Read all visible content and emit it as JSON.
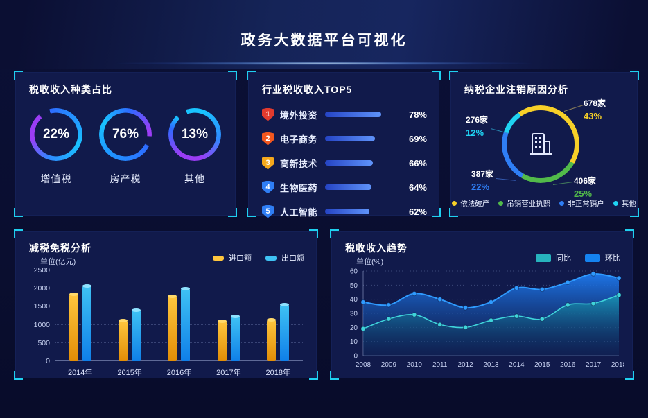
{
  "header": {
    "title": "政务大数据平台可视化"
  },
  "panels": {
    "tax_type": {
      "title": "税收收入种类占比"
    },
    "industry_top5": {
      "title": "行业税收收入TOP5"
    },
    "deregistration": {
      "title": "纳税企业注销原因分析"
    },
    "tax_reduction": {
      "title": "减税免税分析",
      "unit": "单位(亿元)"
    },
    "revenue_trend": {
      "title": "税收收入趋势",
      "unit": "单位(%)"
    }
  },
  "chart_data": [
    {
      "type": "donut",
      "title": "税收收入种类占比",
      "items": [
        {
          "label": "增值税",
          "value": 22,
          "percent_label": "22%"
        },
        {
          "label": "房产税",
          "value": 76,
          "percent_label": "76%"
        },
        {
          "label": "其他",
          "value": 13,
          "percent_label": "13%"
        }
      ]
    },
    {
      "type": "bar-horizontal",
      "title": "行业税收收入TOP5",
      "max": 100,
      "items": [
        {
          "rank": "1",
          "label": "境外投资",
          "value": 78,
          "value_label": "78%",
          "badge_color": "#e23a2e"
        },
        {
          "rank": "2",
          "label": "电子商务",
          "value": 69,
          "value_label": "69%",
          "badge_color": "#f2571f"
        },
        {
          "rank": "3",
          "label": "高新技术",
          "value": 66,
          "value_label": "66%",
          "badge_color": "#f5a81c"
        },
        {
          "rank": "4",
          "label": "生物医药",
          "value": 64,
          "value_label": "64%",
          "badge_color": "#2f7ef5"
        },
        {
          "rank": "5",
          "label": "人工智能",
          "value": 62,
          "value_label": "62%",
          "badge_color": "#2f7ef5"
        }
      ]
    },
    {
      "type": "donut",
      "title": "纳税企业注销原因分析",
      "start_angle": 325,
      "segments": [
        {
          "label": "依法破产",
          "count": "678家",
          "value": 43,
          "percent_label": "43%",
          "color": "#f7d028"
        },
        {
          "label": "吊销营业执照",
          "count": "406家",
          "value": 25,
          "percent_label": "25%",
          "color": "#52ba4a"
        },
        {
          "label": "非正常销户",
          "count": "387家",
          "value": 22,
          "percent_label": "22%",
          "color": "#2f7ef5"
        },
        {
          "label": "其他",
          "count": "276家",
          "value": 12,
          "percent_label": "12%",
          "color": "#1fd3f2"
        }
      ]
    },
    {
      "type": "bar",
      "title": "减税免税分析",
      "unit": "单位(亿元)",
      "categories": [
        "2014年",
        "2015年",
        "2016年",
        "2017年",
        "2018年"
      ],
      "ylim": [
        0,
        2500
      ],
      "yticks": [
        0,
        500,
        1000,
        1500,
        2000,
        2500
      ],
      "series": [
        {
          "name": "进口额",
          "color_top": "#ffc63e",
          "color_bottom": "#e28d06",
          "cap": "#ffd96a",
          "values": [
            1850,
            1130,
            1800,
            1100,
            1150
          ]
        },
        {
          "name": "出口额",
          "color_top": "#3fc2f4",
          "color_bottom": "#0f7fe8",
          "cap": "#8fe2ff",
          "values": [
            2080,
            1420,
            2000,
            1250,
            1560
          ]
        }
      ]
    },
    {
      "type": "area",
      "title": "税收收入趋势",
      "unit": "单位(%)",
      "x": [
        "2008",
        "2009",
        "2010",
        "2011",
        "2012",
        "2013",
        "2014",
        "2015",
        "2016",
        "2017",
        "2018"
      ],
      "ylim": [
        0,
        60
      ],
      "yticks": [
        0,
        10,
        20,
        30,
        40,
        50,
        60
      ],
      "series": [
        {
          "name": "同比",
          "color": "#3fd4da",
          "swatch": "#27b3bd",
          "values": [
            19,
            26,
            29,
            22,
            20,
            25,
            28,
            26,
            36,
            37,
            43
          ]
        },
        {
          "name": "环比",
          "color": "#2f9bff",
          "swatch": "#1583f0",
          "values": [
            38,
            36,
            44,
            40,
            34,
            38,
            48,
            47,
            52,
            58,
            55
          ]
        }
      ]
    }
  ]
}
